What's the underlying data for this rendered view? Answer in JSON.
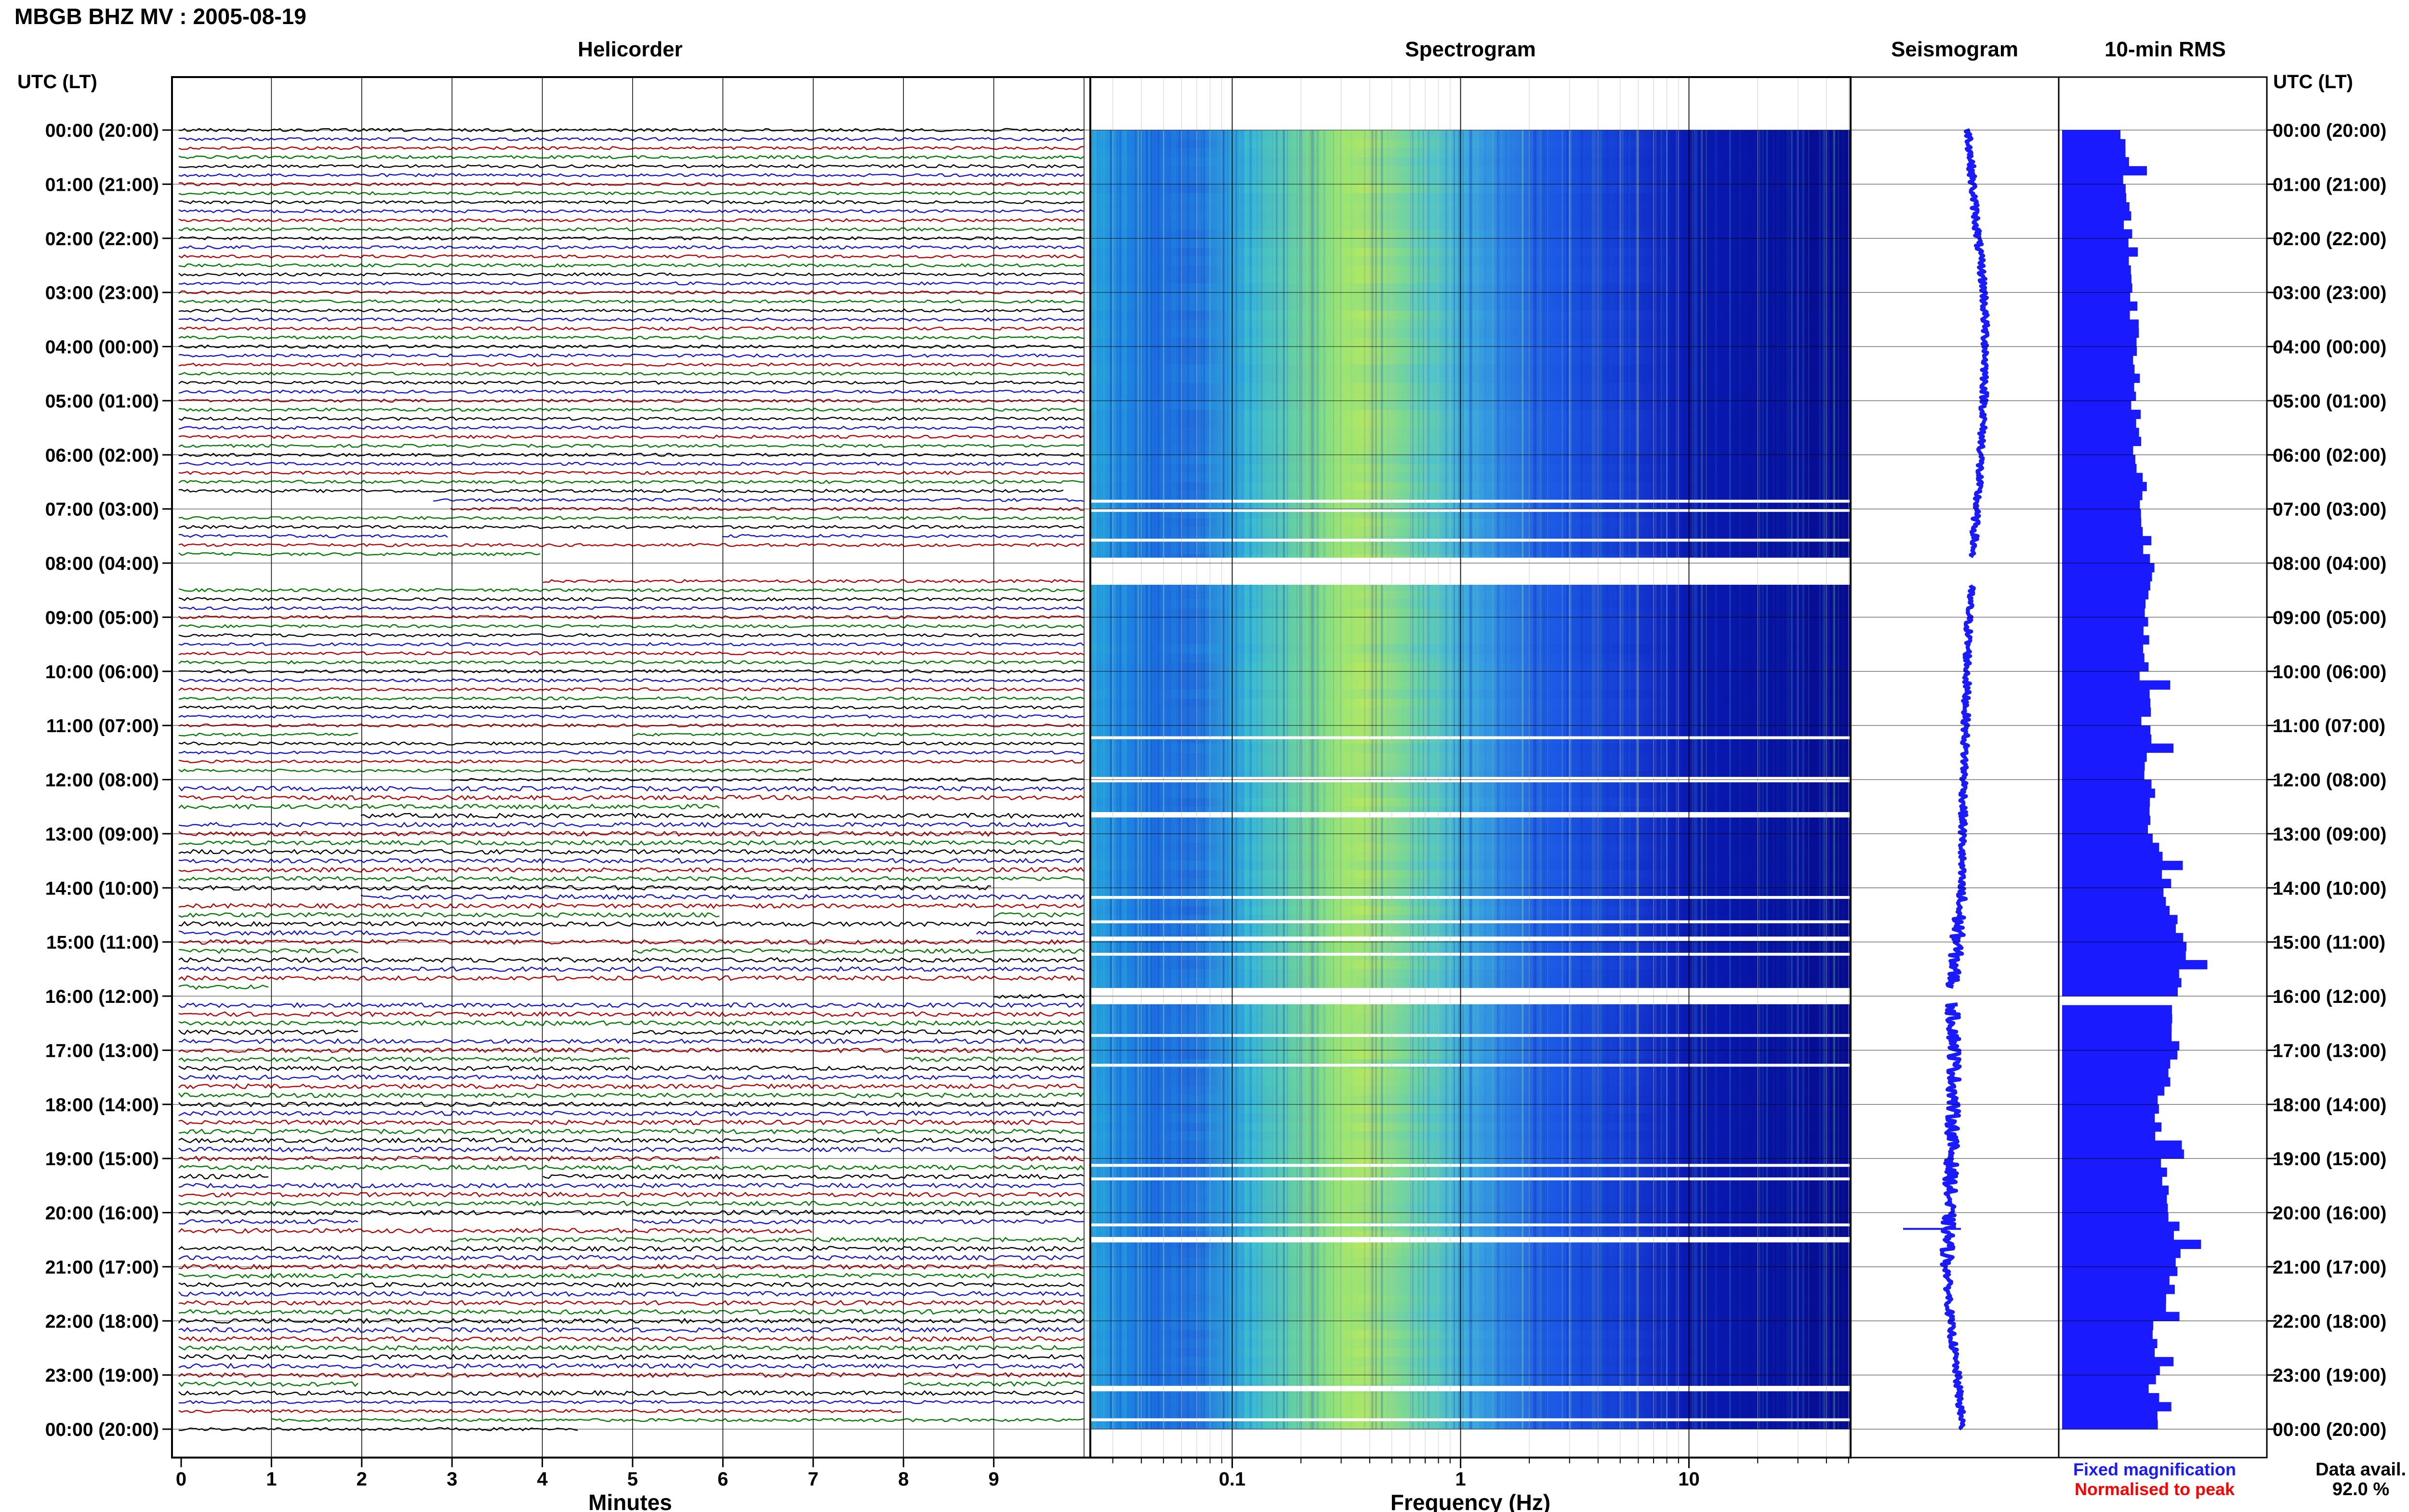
{
  "chart_data": {
    "type": "heatmap",
    "title": "MBGB BHZ MV : 2005-08-19",
    "panels": {
      "helicorder": "Helicorder",
      "spectrogram": "Spectrogram",
      "seismogram": "Seismogram",
      "rms": "10-min RMS"
    },
    "time_axis_label_left": "UTC (LT)",
    "time_axis_label_right": "UTC (LT)",
    "hour_labels": [
      "00:00 (20:00)",
      "01:00 (21:00)",
      "02:00 (22:00)",
      "03:00 (23:00)",
      "04:00 (00:00)",
      "05:00 (01:00)",
      "06:00 (02:00)",
      "07:00 (03:00)",
      "08:00 (04:00)",
      "09:00 (05:00)",
      "10:00 (06:00)",
      "11:00 (07:00)",
      "12:00 (08:00)",
      "13:00 (09:00)",
      "14:00 (10:00)",
      "15:00 (11:00)",
      "16:00 (12:00)",
      "17:00 (13:00)",
      "18:00 (14:00)",
      "19:00 (15:00)",
      "20:00 (16:00)",
      "21:00 (17:00)",
      "22:00 (18:00)",
      "23:00 (19:00)",
      "00:00 (20:00)"
    ],
    "helicorder_x": {
      "label": "Minutes",
      "ticks": [
        "0",
        "1",
        "2",
        "3",
        "4",
        "5",
        "6",
        "7",
        "8",
        "9"
      ],
      "range": [
        0,
        10
      ],
      "trace_colors": [
        "#000000",
        "#1414c8",
        "#b40000",
        "#007800"
      ]
    },
    "spectrogram_x": {
      "label": "Frequency (Hz)",
      "ticks": [
        "0.1",
        "1",
        "10"
      ],
      "scale": "log",
      "range": [
        0.025,
        50
      ]
    },
    "gaps_utc_hours": [
      [
        6.83,
        6.88
      ],
      [
        7.0,
        7.05
      ],
      [
        7.55,
        7.6
      ],
      [
        7.9,
        8.4
      ],
      [
        11.2,
        11.25
      ],
      [
        11.95,
        12.05
      ],
      [
        12.6,
        12.7
      ],
      [
        14.15,
        14.2
      ],
      [
        14.6,
        14.65
      ],
      [
        14.9,
        14.98
      ],
      [
        15.2,
        15.25
      ],
      [
        15.85,
        16.15
      ],
      [
        16.7,
        16.75
      ],
      [
        17.25,
        17.3
      ],
      [
        19.1,
        19.15
      ],
      [
        19.35,
        19.4
      ],
      [
        20.2,
        20.25
      ],
      [
        20.45,
        20.55
      ],
      [
        23.2,
        23.3
      ],
      [
        23.8,
        23.85
      ]
    ],
    "seismogram_offset_hourly": [
      0.1,
      0.15,
      0.22,
      0.3,
      0.32,
      0.3,
      0.26,
      0.2,
      0.15,
      0.1,
      0.08,
      0.06,
      0.04,
      0.02,
      0.0,
      -0.05,
      -0.12,
      -0.08,
      -0.1,
      -0.12,
      -0.16,
      -0.18,
      -0.14,
      -0.05,
      0.02
    ],
    "rms_hourly_relative": [
      0.32,
      0.33,
      0.36,
      0.38,
      0.37,
      0.38,
      0.4,
      0.42,
      0.46,
      0.44,
      0.42,
      0.44,
      0.45,
      0.47,
      0.55,
      0.62,
      0.6,
      0.58,
      0.5,
      0.52,
      0.58,
      0.6,
      0.5,
      0.48,
      0.47
    ],
    "legend": [
      {
        "label": "Fixed magnification",
        "color": "#1a1aff"
      },
      {
        "label": "Normalised to peak",
        "color": "#ff0000"
      }
    ],
    "data_avail_label": "Data avail.",
    "data_avail_value": "92.0 %"
  }
}
